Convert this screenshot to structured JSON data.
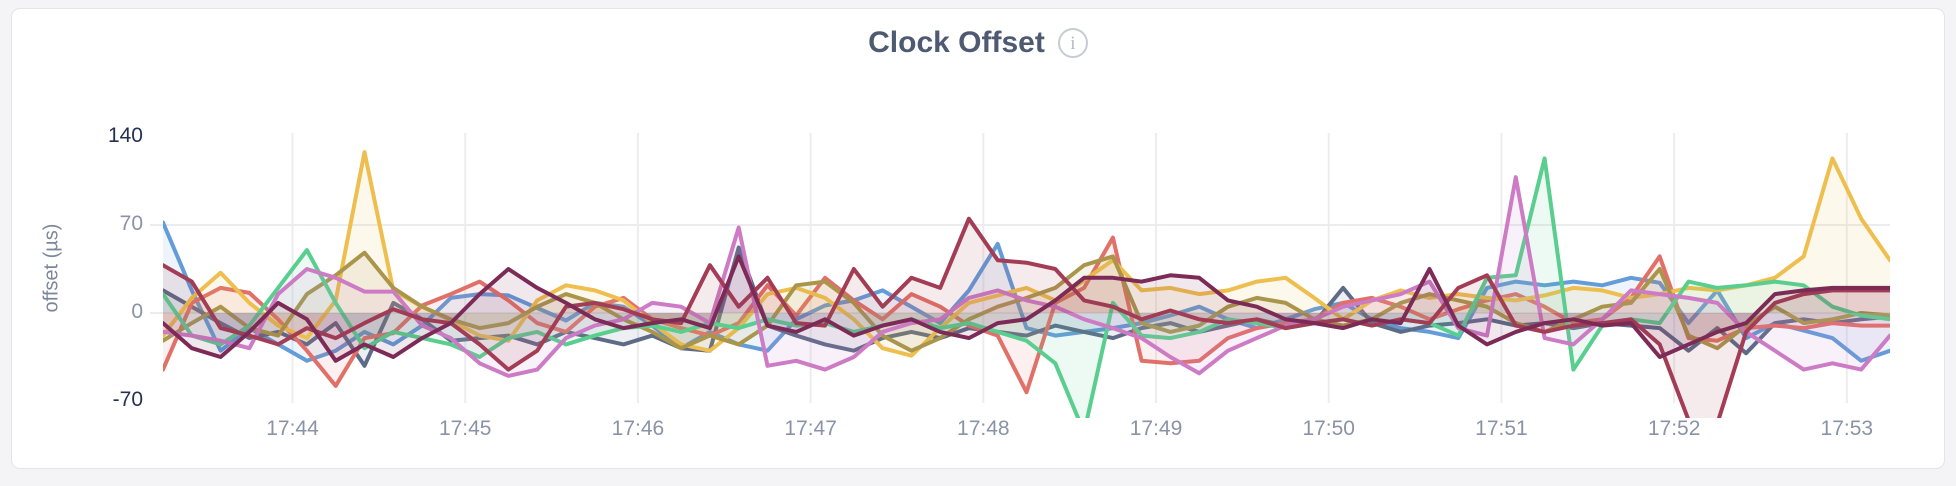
{
  "page": {
    "background": "#f4f4f6"
  },
  "card": {
    "background": "#ffffff",
    "border_color": "#e3e4e8"
  },
  "chart": {
    "title": "Clock Offset",
    "info_icon": "i",
    "y_axis": {
      "label": "offset (µs)",
      "ticks": [
        {
          "label": "140",
          "value": 140,
          "emphasized": true,
          "gridline": false
        },
        {
          "label": "70",
          "value": 70,
          "emphasized": false,
          "gridline": true
        },
        {
          "label": "0",
          "value": 0,
          "emphasized": false,
          "gridline": true
        },
        {
          "label": "-70",
          "value": -70,
          "emphasized": true,
          "gridline": false
        }
      ]
    }
  },
  "chart_data": {
    "type": "line",
    "title": "Clock Offset",
    "xlabel": "",
    "ylabel": "offset (µs)",
    "ylim": [
      -70,
      140
    ],
    "grid": "horizontal lines at 70 and 0, vertical line per time tick",
    "legend": "none",
    "x_domain_minutes": [
      0,
      10
    ],
    "sample_interval_minutes": 0.1666667,
    "x_ticks": [
      {
        "label": "17:44",
        "t": 0.75
      },
      {
        "label": "17:45",
        "t": 1.75
      },
      {
        "label": "17:46",
        "t": 2.75
      },
      {
        "label": "17:47",
        "t": 3.75
      },
      {
        "label": "17:48",
        "t": 4.75
      },
      {
        "label": "17:49",
        "t": 5.75
      },
      {
        "label": "17:50",
        "t": 6.75
      },
      {
        "label": "17:51",
        "t": 7.75
      },
      {
        "label": "17:52",
        "t": 8.75
      },
      {
        "label": "17:53",
        "t": 9.75
      }
    ],
    "series": [
      {
        "name": "series-blue",
        "color": "#639CD8",
        "values": [
          72,
          18,
          -30,
          -12,
          -25,
          -38,
          -30,
          -15,
          -25,
          -10,
          12,
          15,
          14,
          4,
          -6,
          8,
          5,
          -10,
          -28,
          -15,
          -25,
          -30,
          -5,
          6,
          10,
          18,
          5,
          -8,
          18,
          55,
          -12,
          -18,
          -15,
          -12,
          -8,
          -2,
          5,
          -5,
          -12,
          -5,
          3,
          8,
          -5,
          -12,
          -15,
          -20,
          20,
          25,
          22,
          25,
          22,
          28,
          24,
          -8,
          18,
          -20,
          -8,
          -14,
          -20,
          -38,
          -30
        ]
      },
      {
        "name": "series-slate",
        "color": "#5D6B87",
        "values": [
          18,
          5,
          -8,
          -20,
          -15,
          -25,
          -8,
          -42,
          8,
          -5,
          -22,
          -20,
          -18,
          -25,
          -15,
          -20,
          -25,
          -18,
          -28,
          -30,
          52,
          -10,
          -18,
          -25,
          -30,
          -20,
          -15,
          -20,
          -12,
          -15,
          -18,
          -10,
          -15,
          -20,
          -12,
          -8,
          -15,
          -10,
          -5,
          -10,
          -8,
          20,
          -8,
          -15,
          -10,
          -8,
          -5,
          -10,
          -8,
          -12,
          -8,
          -10,
          -12,
          -30,
          -12,
          -32,
          -8,
          -5,
          -8,
          -5,
          -3
        ]
      },
      {
        "name": "series-red",
        "color": "#E17069",
        "values": [
          -45,
          8,
          20,
          16,
          -5,
          -30,
          -58,
          -20,
          -16,
          6,
          15,
          25,
          10,
          -8,
          -15,
          5,
          12,
          -5,
          -12,
          -18,
          -8,
          22,
          -2,
          28,
          10,
          -5,
          15,
          5,
          -10,
          -18,
          -63,
          8,
          20,
          60,
          -38,
          -40,
          -38,
          -20,
          -12,
          -8,
          -5,
          8,
          12,
          5,
          -5,
          3,
          10,
          15,
          5,
          -8,
          -5,
          12,
          45,
          -20,
          -22,
          -12,
          -10,
          -12,
          -8,
          -10,
          -10
        ]
      },
      {
        "name": "series-gold",
        "color": "#EEBF4E",
        "values": [
          -18,
          12,
          32,
          8,
          -10,
          -20,
          10,
          128,
          18,
          5,
          -6,
          -18,
          -22,
          10,
          22,
          18,
          10,
          -8,
          -25,
          -30,
          -12,
          15,
          20,
          12,
          -5,
          -28,
          -34,
          -12,
          8,
          14,
          20,
          10,
          26,
          42,
          18,
          20,
          15,
          18,
          25,
          28,
          12,
          -5,
          10,
          18,
          12,
          15,
          12,
          10,
          14,
          20,
          18,
          12,
          15,
          20,
          18,
          22,
          28,
          45,
          123,
          75,
          42
        ]
      },
      {
        "name": "series-olive",
        "color": "#A9964B",
        "values": [
          -22,
          -8,
          5,
          -12,
          -18,
          15,
          30,
          48,
          20,
          5,
          -5,
          -12,
          -8,
          5,
          15,
          8,
          -5,
          -15,
          -28,
          -18,
          -25,
          -10,
          22,
          25,
          8,
          -18,
          -30,
          -20,
          -5,
          5,
          12,
          20,
          38,
          45,
          -8,
          -15,
          -10,
          5,
          12,
          8,
          -5,
          -10,
          -5,
          8,
          15,
          10,
          5,
          -8,
          -15,
          -5,
          5,
          8,
          35,
          -18,
          -28,
          -10,
          5,
          -8,
          -5,
          0,
          -2
        ]
      },
      {
        "name": "series-green",
        "color": "#5ACE8F",
        "values": [
          15,
          -18,
          -25,
          -10,
          20,
          50,
          8,
          -28,
          -15,
          -20,
          -25,
          -35,
          -20,
          -15,
          -25,
          -18,
          -12,
          -10,
          -15,
          -8,
          -12,
          -5,
          -10,
          -8,
          -15,
          -10,
          -5,
          -12,
          -8,
          -15,
          -22,
          -40,
          -95,
          8,
          -18,
          -20,
          -15,
          -5,
          -8,
          -12,
          -8,
          -5,
          -10,
          -5,
          -8,
          -18,
          28,
          30,
          123,
          -45,
          -10,
          -5,
          -8,
          25,
          20,
          22,
          25,
          22,
          5,
          -2,
          -5
        ]
      },
      {
        "name": "series-orchid",
        "color": "#CC7BC4",
        "values": [
          -15,
          -18,
          -22,
          -28,
          15,
          35,
          28,
          17,
          17,
          -10,
          -20,
          -40,
          -50,
          -45,
          -20,
          -10,
          -5,
          8,
          5,
          -8,
          68,
          -42,
          -38,
          -45,
          -35,
          -15,
          -8,
          -5,
          12,
          18,
          10,
          5,
          -5,
          -12,
          -20,
          -35,
          -48,
          -30,
          -20,
          -10,
          -5,
          5,
          10,
          15,
          25,
          -12,
          -18,
          108,
          -20,
          -25,
          -5,
          18,
          15,
          12,
          8,
          -15,
          -30,
          -45,
          -40,
          -45,
          -18
        ]
      },
      {
        "name": "series-maroon",
        "color": "#A33D55",
        "values": [
          38,
          25,
          -12,
          -18,
          -25,
          -12,
          -20,
          -8,
          3,
          -5,
          -8,
          -25,
          -45,
          -30,
          5,
          8,
          3,
          -5,
          -8,
          38,
          5,
          28,
          -8,
          -10,
          35,
          5,
          28,
          20,
          75,
          42,
          40,
          35,
          10,
          5,
          -5,
          2,
          -5,
          -8,
          -5,
          -12,
          -8,
          -5,
          -10,
          -5,
          -8,
          20,
          30,
          -10,
          -15,
          -10,
          -8,
          -5,
          -25,
          -85,
          -88,
          -15,
          8,
          15,
          18,
          18,
          18
        ]
      },
      {
        "name": "series-plum",
        "color": "#7C2B57",
        "values": [
          -8,
          -28,
          -35,
          -15,
          8,
          -5,
          -38,
          -25,
          -35,
          -20,
          -8,
          15,
          35,
          20,
          8,
          -5,
          -12,
          -8,
          -5,
          -12,
          45,
          -10,
          -15,
          -5,
          -18,
          -10,
          -5,
          -15,
          -20,
          -8,
          -5,
          10,
          28,
          28,
          25,
          30,
          28,
          10,
          5,
          -5,
          -8,
          -12,
          -5,
          -8,
          35,
          -10,
          -25,
          -15,
          -8,
          -5,
          -10,
          -8,
          -35,
          -25,
          -15,
          -8,
          15,
          18,
          20,
          20,
          20
        ]
      }
    ]
  }
}
